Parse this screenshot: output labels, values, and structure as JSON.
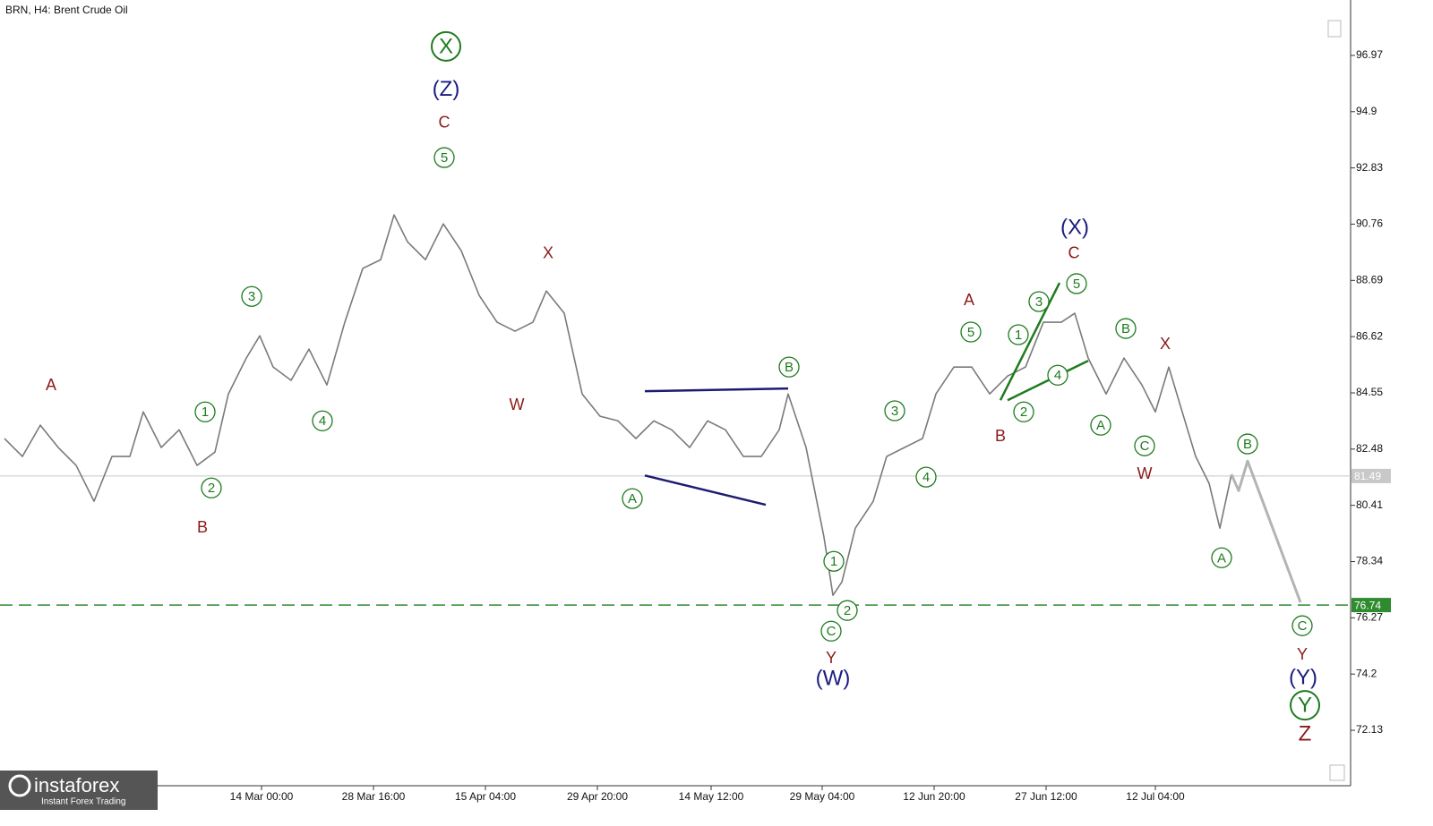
{
  "chart_data": {
    "type": "price_line",
    "title": "BRN, H4:  Brent Crude Oil",
    "branding": {
      "name": "instaforex",
      "tagline": "Instant Forex Trading"
    },
    "xlim": [
      0,
      754
    ],
    "ylim": [
      70.09,
      99.01
    ],
    "yticks": [
      72.13,
      74.2,
      76.27,
      78.34,
      80.41,
      82.48,
      84.55,
      86.62,
      88.69,
      90.76,
      92.83,
      94.9,
      96.97
    ],
    "xticks": [
      {
        "value": 146,
        "label": "14 Mar 00:00"
      },
      {
        "value": 208.5,
        "label": "28 Mar 16:00"
      },
      {
        "value": 271,
        "label": "15 Apr 04:00"
      },
      {
        "value": 333.5,
        "label": "29 Apr 20:00"
      },
      {
        "value": 397,
        "label": "14 May 12:00"
      },
      {
        "value": 459,
        "label": "29 May 04:00"
      },
      {
        "value": 521.5,
        "label": "12 Jun 20:00"
      },
      {
        "value": 584,
        "label": "27 Jun 12:00"
      },
      {
        "value": 645,
        "label": "12 Jul 04:00"
      }
    ],
    "series": [
      {
        "name": "BRN",
        "color": "#7a7a7a",
        "x": [
          2.5,
          12.5,
          22.5,
          32.5,
          42.5,
          52.5,
          62.5,
          72.5,
          80,
          90,
          100,
          110,
          120,
          127.5,
          137.5,
          145,
          152.5,
          162.5,
          172.5,
          182.5,
          192.5,
          202.5,
          212.5,
          220,
          227.5,
          237.5,
          247.5,
          257.5,
          267.5,
          277.5,
          287.5,
          297.5,
          305,
          315,
          325,
          335,
          345,
          355,
          365,
          375,
          385,
          395,
          405,
          415,
          425,
          435,
          440,
          450,
          460,
          465,
          470,
          477.5,
          487.5,
          495,
          505,
          515,
          522.5,
          532.5,
          542.5,
          552.5,
          562.5,
          572.5,
          582.5,
          592.5,
          600,
          607.5,
          617.5,
          627.5,
          637.5,
          645,
          652.5,
          660,
          667.5,
          675,
          681,
          687.5
        ],
        "values": [
          82.87,
          82.21,
          83.36,
          82.54,
          81.88,
          80.56,
          82.21,
          82.21,
          83.85,
          82.54,
          83.19,
          81.88,
          82.37,
          84.51,
          85.83,
          86.65,
          85.5,
          85.01,
          86.16,
          84.84,
          87.15,
          89.13,
          89.45,
          91.1,
          90.11,
          89.45,
          90.77,
          89.78,
          88.14,
          87.15,
          86.82,
          87.15,
          88.3,
          87.48,
          84.51,
          83.69,
          83.52,
          82.87,
          83.52,
          83.19,
          82.54,
          83.52,
          83.19,
          82.21,
          82.21,
          83.19,
          84.51,
          82.54,
          79.24,
          77.1,
          77.59,
          79.57,
          80.56,
          82.21,
          82.54,
          82.87,
          84.51,
          85.5,
          85.5,
          84.51,
          85.17,
          85.5,
          87.15,
          87.15,
          87.48,
          85.83,
          84.51,
          85.83,
          84.84,
          83.85,
          85.5,
          83.85,
          82.21,
          81.22,
          79.57,
          81.55
        ]
      },
      {
        "color": "#b4b4b4",
        "x": [
          687.5,
          691.5,
          696.5,
          726
        ],
        "values": [
          81.55,
          80.95,
          82.04,
          76.84
        ]
      }
    ],
    "levels": [
      {
        "value": 81.49,
        "color": "#c8c8c8",
        "style": "solid"
      },
      {
        "value": 76.74,
        "color": "#2e8b2e",
        "style": "dashed"
      }
    ],
    "trendlines": [
      {
        "color": "#1c1c70",
        "x": [
          360,
          440
        ],
        "y": [
          84.61,
          84.71
        ]
      },
      {
        "color": "#1c1c70",
        "x": [
          360,
          427.5
        ],
        "y": [
          81.51,
          80.43
        ]
      },
      {
        "color": "#1e7b1e",
        "x": [
          558.5,
          591.5
        ],
        "y": [
          84.28,
          88.6
        ]
      },
      {
        "color": "#1e7b1e",
        "x": [
          562.5,
          607.5
        ],
        "y": [
          84.28,
          85.73
        ]
      }
    ],
    "wave_labels": [
      {
        "text": "X",
        "x": 249,
        "y": 97.3,
        "color": "#1e7b1e",
        "circled": true,
        "large": true
      },
      {
        "text": "(Z)",
        "x": 249,
        "y": 95.72,
        "color": "#1c1c80",
        "circled": false,
        "large": true
      },
      {
        "text": "C",
        "x": 248,
        "y": 94.5,
        "color": "#8b1a1a",
        "circled": false,
        "large": false
      },
      {
        "text": "5",
        "x": 248,
        "y": 93.21,
        "color": "#1e7b1e",
        "circled": true,
        "large": false
      },
      {
        "text": "A",
        "x": 28.5,
        "y": 84.84,
        "color": "#8b1a1a",
        "circled": false,
        "large": false
      },
      {
        "text": "1",
        "x": 114.5,
        "y": 83.85,
        "color": "#1e7b1e",
        "circled": true,
        "large": false
      },
      {
        "text": "2",
        "x": 118,
        "y": 81.05,
        "color": "#1e7b1e",
        "circled": true,
        "large": false
      },
      {
        "text": "B",
        "x": 113,
        "y": 79.6,
        "color": "#8b1a1a",
        "circled": false,
        "large": false
      },
      {
        "text": "3",
        "x": 140.5,
        "y": 88.1,
        "color": "#1e7b1e",
        "circled": true,
        "large": false
      },
      {
        "text": "4",
        "x": 180,
        "y": 83.52,
        "color": "#1e7b1e",
        "circled": true,
        "large": false
      },
      {
        "text": "X",
        "x": 306,
        "y": 89.69,
        "color": "#8b1a1a",
        "circled": false,
        "large": false
      },
      {
        "text": "W",
        "x": 288.5,
        "y": 84.12,
        "color": "#8b1a1a",
        "circled": false,
        "large": false
      },
      {
        "text": "A",
        "x": 353,
        "y": 80.66,
        "color": "#1e7b1e",
        "circled": true,
        "large": false
      },
      {
        "text": "B",
        "x": 440.5,
        "y": 85.5,
        "color": "#1e7b1e",
        "circled": true,
        "large": false
      },
      {
        "text": "1",
        "x": 465.5,
        "y": 78.35,
        "color": "#1e7b1e",
        "circled": true,
        "large": false
      },
      {
        "text": "2",
        "x": 473,
        "y": 76.54,
        "color": "#1e7b1e",
        "circled": true,
        "large": false
      },
      {
        "text": "C",
        "x": 464,
        "y": 75.78,
        "color": "#1e7b1e",
        "circled": true,
        "large": false
      },
      {
        "text": "Y",
        "x": 464,
        "y": 74.79,
        "color": "#8b1a1a",
        "circled": false,
        "large": false
      },
      {
        "text": "(W)",
        "x": 465,
        "y": 74.03,
        "color": "#1c1c80",
        "circled": false,
        "large": true
      },
      {
        "text": "3",
        "x": 499.5,
        "y": 83.89,
        "color": "#1e7b1e",
        "circled": true,
        "large": false
      },
      {
        "text": "4",
        "x": 517,
        "y": 81.45,
        "color": "#1e7b1e",
        "circled": true,
        "large": false
      },
      {
        "text": "5",
        "x": 542,
        "y": 86.79,
        "color": "#1e7b1e",
        "circled": true,
        "large": false
      },
      {
        "text": "A",
        "x": 541,
        "y": 87.97,
        "color": "#8b1a1a",
        "circled": false,
        "large": false
      },
      {
        "text": "B",
        "x": 558.5,
        "y": 82.96,
        "color": "#8b1a1a",
        "circled": false,
        "large": false
      },
      {
        "text": "2",
        "x": 571.5,
        "y": 83.85,
        "color": "#1e7b1e",
        "circled": true,
        "large": false
      },
      {
        "text": "1",
        "x": 568.5,
        "y": 86.69,
        "color": "#1e7b1e",
        "circled": true,
        "large": false
      },
      {
        "text": "3",
        "x": 580,
        "y": 87.91,
        "color": "#1e7b1e",
        "circled": true,
        "large": false
      },
      {
        "text": "4",
        "x": 590.5,
        "y": 85.2,
        "color": "#1e7b1e",
        "circled": true,
        "large": false
      },
      {
        "text": "5",
        "x": 601,
        "y": 88.57,
        "color": "#1e7b1e",
        "circled": true,
        "large": false
      },
      {
        "text": "C",
        "x": 599.5,
        "y": 89.69,
        "color": "#8b1a1a",
        "circled": false,
        "large": false
      },
      {
        "text": "(X)",
        "x": 600,
        "y": 90.64,
        "color": "#1c1c80",
        "circled": false,
        "large": true
      },
      {
        "text": "A",
        "x": 614.5,
        "y": 83.36,
        "color": "#1e7b1e",
        "circled": true,
        "large": false
      },
      {
        "text": "B",
        "x": 628.5,
        "y": 86.92,
        "color": "#1e7b1e",
        "circled": true,
        "large": false
      },
      {
        "text": "X",
        "x": 650.5,
        "y": 86.36,
        "color": "#8b1a1a",
        "circled": false,
        "large": false
      },
      {
        "text": "C",
        "x": 639,
        "y": 82.6,
        "color": "#1e7b1e",
        "circled": true,
        "large": false
      },
      {
        "text": "W",
        "x": 639,
        "y": 81.58,
        "color": "#8b1a1a",
        "circled": false,
        "large": false
      },
      {
        "text": "A",
        "x": 682,
        "y": 78.48,
        "color": "#1e7b1e",
        "circled": true,
        "large": false
      },
      {
        "text": "B",
        "x": 696.5,
        "y": 82.67,
        "color": "#1e7b1e",
        "circled": true,
        "large": false
      },
      {
        "text": "C",
        "x": 727,
        "y": 75.98,
        "color": "#1e7b1e",
        "circled": true,
        "large": false
      },
      {
        "text": "Y",
        "x": 727,
        "y": 74.92,
        "color": "#8b1a1a",
        "circled": false,
        "large": false
      },
      {
        "text": "(Y)",
        "x": 727.5,
        "y": 74.07,
        "color": "#1c1c80",
        "circled": false,
        "large": true
      },
      {
        "text": "Y",
        "x": 728.5,
        "y": 73.05,
        "color": "#1e7b1e",
        "circled": true,
        "large": true
      },
      {
        "text": "Z",
        "x": 728.5,
        "y": 71.99,
        "color": "#8b1a1a",
        "circled": false,
        "large": true
      }
    ]
  }
}
